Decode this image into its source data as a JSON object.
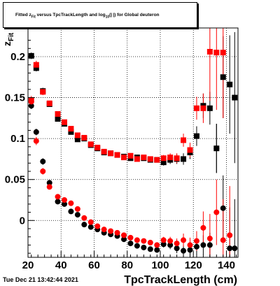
{
  "title": {
    "prefix": "Fitted  z",
    "sub1": "Fit",
    "middle": "  versus  TpcTrackLength and log",
    "sub2": "10",
    "suffix": "(| |) for Global deuteron"
  },
  "footer": "Tue Dec 21 13:42:44 2021",
  "chart_data": {
    "type": "scatter",
    "title": "Fitted z_Fit versus TpcTrackLength and log10(| |) for Global deuteron",
    "xlabel": "TpcTrackLength (cm)",
    "ylabel": "z_Fit",
    "xlim": [
      20,
      147
    ],
    "ylim": [
      -0.045,
      0.235
    ],
    "x_ticks": [
      20,
      40,
      60,
      80,
      100,
      120,
      140
    ],
    "y_ticks": [
      {
        "v": 0,
        "label": "0"
      },
      {
        "v": 0.05,
        "label": "0.05"
      },
      {
        "v": 0.1,
        "label": "0.1"
      },
      {
        "v": 0.15,
        "label": "0.15"
      },
      {
        "v": 0.2,
        "label": "0.2"
      }
    ],
    "grid": true,
    "series": [
      {
        "color": "#000000",
        "marker": "square",
        "points": [
          [
            22,
            0.201,
            0.004
          ],
          [
            25,
            0.186,
            0.004
          ],
          [
            29,
            0.158,
            0.004
          ],
          [
            33,
            0.142,
            0.003
          ],
          [
            38,
            0.124,
            0.003
          ],
          [
            42,
            0.118,
            0.003
          ],
          [
            46,
            0.108,
            0.003
          ],
          [
            50,
            0.099,
            0.003
          ],
          [
            54,
            0.1,
            0.003
          ],
          [
            58,
            0.092,
            0.003
          ],
          [
            62,
            0.088,
            0.003
          ],
          [
            66,
            0.083,
            0.003
          ],
          [
            70,
            0.082,
            0.003
          ],
          [
            74,
            0.08,
            0.003
          ],
          [
            78,
            0.078,
            0.003
          ],
          [
            82,
            0.076,
            0.003
          ],
          [
            86,
            0.077,
            0.003
          ],
          [
            90,
            0.076,
            0.003
          ],
          [
            94,
            0.074,
            0.003
          ],
          [
            98,
            0.074,
            0.003
          ],
          [
            102,
            0.071,
            0.004
          ],
          [
            106,
            0.074,
            0.005
          ],
          [
            110,
            0.075,
            0.006
          ],
          [
            114,
            0.075,
            0.007
          ],
          [
            118,
            0.083,
            0.008
          ],
          [
            122,
            0.103,
            0.012
          ],
          [
            126,
            0.14,
            0.015
          ],
          [
            130,
            0.137,
            0.02
          ],
          [
            134,
            0.088,
            0.03
          ],
          [
            138,
            0.175,
            0.05
          ],
          [
            142,
            0.166,
            0.06
          ],
          [
            145,
            0.15,
            0.08
          ]
        ]
      },
      {
        "color": "#ff0000",
        "marker": "square",
        "points": [
          [
            22,
            0.147,
            0.005
          ],
          [
            25,
            0.19,
            0.005
          ],
          [
            29,
            0.157,
            0.004
          ],
          [
            33,
            0.143,
            0.003
          ],
          [
            38,
            0.13,
            0.003
          ],
          [
            42,
            0.12,
            0.003
          ],
          [
            46,
            0.112,
            0.003
          ],
          [
            50,
            0.104,
            0.003
          ],
          [
            54,
            0.101,
            0.003
          ],
          [
            58,
            0.093,
            0.003
          ],
          [
            62,
            0.089,
            0.003
          ],
          [
            66,
            0.084,
            0.003
          ],
          [
            70,
            0.082,
            0.003
          ],
          [
            74,
            0.08,
            0.003
          ],
          [
            78,
            0.077,
            0.003
          ],
          [
            82,
            0.079,
            0.003
          ],
          [
            86,
            0.075,
            0.003
          ],
          [
            90,
            0.077,
            0.003
          ],
          [
            94,
            0.075,
            0.003
          ],
          [
            98,
            0.074,
            0.003
          ],
          [
            102,
            0.076,
            0.004
          ],
          [
            106,
            0.077,
            0.005
          ],
          [
            110,
            0.076,
            0.006
          ],
          [
            114,
            0.098,
            0.008
          ],
          [
            118,
            0.086,
            0.009
          ],
          [
            122,
            0.137,
            0.014
          ],
          [
            126,
            0.137,
            0.018
          ],
          [
            130,
            0.206,
            0.06
          ],
          [
            134,
            0.205,
            0.07
          ],
          [
            138,
            0.205,
            0.08
          ]
        ]
      },
      {
        "color": "#000000",
        "marker": "circle",
        "points": [
          [
            22,
            0.14,
            0.004
          ],
          [
            25,
            0.108,
            0.004
          ],
          [
            29,
            0.072,
            0.004
          ],
          [
            33,
            0.046,
            0.003
          ],
          [
            38,
            0.023,
            0.003
          ],
          [
            42,
            0.02,
            0.003
          ],
          [
            46,
            0.011,
            0.003
          ],
          [
            50,
            0.007,
            0.003
          ],
          [
            54,
            -0.005,
            0.003
          ],
          [
            58,
            -0.008,
            0.003
          ],
          [
            62,
            -0.011,
            0.003
          ],
          [
            66,
            -0.015,
            0.003
          ],
          [
            70,
            -0.017,
            0.003
          ],
          [
            74,
            -0.019,
            0.003
          ],
          [
            78,
            -0.023,
            0.003
          ],
          [
            82,
            -0.028,
            0.003
          ],
          [
            86,
            -0.031,
            0.003
          ],
          [
            90,
            -0.033,
            0.003
          ],
          [
            94,
            -0.035,
            0.003
          ],
          [
            98,
            -0.036,
            0.003
          ],
          [
            102,
            -0.029,
            0.004
          ],
          [
            106,
            -0.03,
            0.005
          ],
          [
            110,
            -0.034,
            0.006
          ],
          [
            114,
            -0.037,
            0.007
          ],
          [
            118,
            -0.036,
            0.008
          ],
          [
            122,
            -0.032,
            0.01
          ],
          [
            126,
            -0.03,
            0.012
          ],
          [
            130,
            -0.03,
            0.015
          ],
          [
            134,
            0.088,
            0.03
          ],
          [
            138,
            0.015,
            0.04
          ],
          [
            142,
            -0.034,
            0.05
          ],
          [
            145,
            -0.034,
            0.06
          ]
        ]
      },
      {
        "color": "#ff0000",
        "marker": "circle",
        "points": [
          [
            22,
            0.145,
            0.005
          ],
          [
            25,
            0.097,
            0.005
          ],
          [
            29,
            0.06,
            0.004
          ],
          [
            33,
            0.041,
            0.003
          ],
          [
            38,
            0.029,
            0.003
          ],
          [
            42,
            0.025,
            0.003
          ],
          [
            46,
            0.021,
            0.003
          ],
          [
            50,
            0.014,
            0.003
          ],
          [
            54,
            0.003,
            0.003
          ],
          [
            58,
            -0.002,
            0.003
          ],
          [
            62,
            -0.007,
            0.003
          ],
          [
            66,
            -0.011,
            0.003
          ],
          [
            70,
            -0.013,
            0.003
          ],
          [
            74,
            -0.015,
            0.003
          ],
          [
            78,
            -0.018,
            0.003
          ],
          [
            82,
            -0.021,
            0.003
          ],
          [
            86,
            -0.024,
            0.003
          ],
          [
            90,
            -0.025,
            0.003
          ],
          [
            94,
            -0.027,
            0.003
          ],
          [
            98,
            -0.03,
            0.003
          ],
          [
            102,
            -0.024,
            0.004
          ],
          [
            106,
            -0.025,
            0.005
          ],
          [
            110,
            -0.028,
            0.006
          ],
          [
            114,
            -0.024,
            0.008
          ],
          [
            118,
            -0.03,
            0.009
          ],
          [
            122,
            -0.025,
            0.012
          ],
          [
            126,
            -0.009,
            0.02
          ],
          [
            130,
            -0.022,
            0.03
          ],
          [
            134,
            0.01,
            0.04
          ],
          [
            138,
            -0.024,
            0.05
          ],
          [
            142,
            -0.018,
            0.06
          ]
        ]
      }
    ]
  }
}
